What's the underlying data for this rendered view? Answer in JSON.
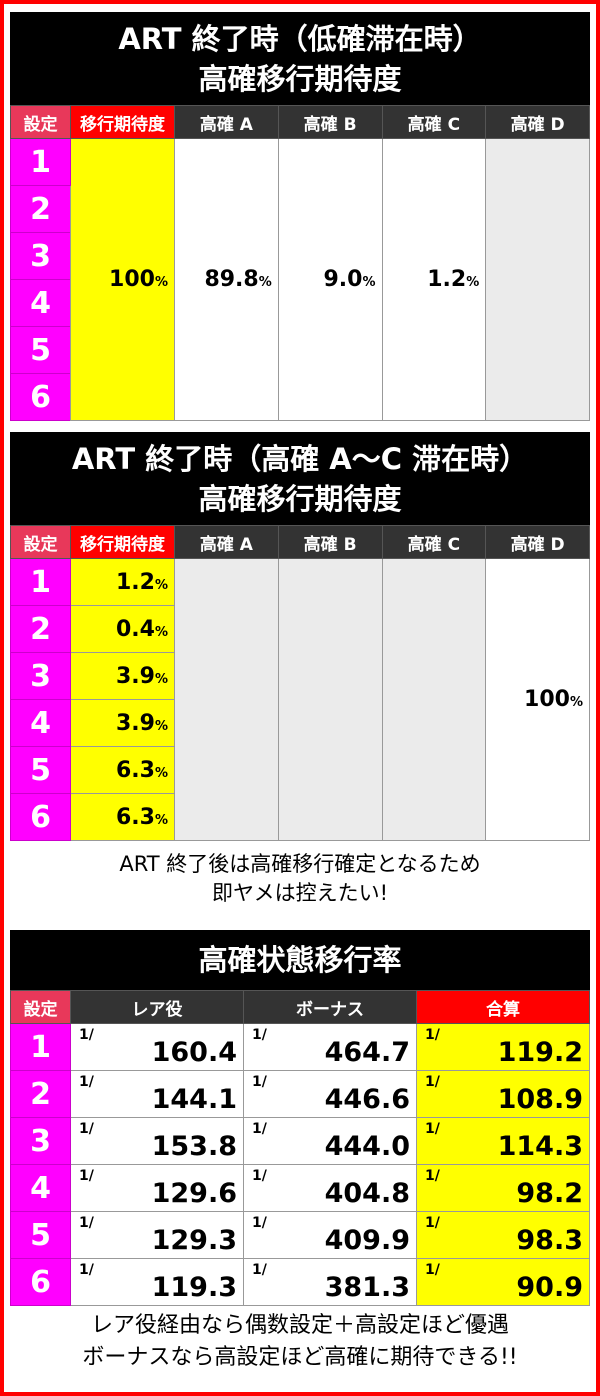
{
  "section1": {
    "title_line1": "ART 終了時（低確滞在時）",
    "title_line2": "高確移行期待度",
    "headers": [
      "設定",
      "移行期待度",
      "高確 A",
      "高確 B",
      "高確 C",
      "高確 D"
    ],
    "settings": [
      "1",
      "2",
      "3",
      "4",
      "5",
      "6"
    ],
    "expectation": "100",
    "a": "89.8",
    "b": "9.0",
    "c": "1.2",
    "pct": "%"
  },
  "section2": {
    "title_line1": "ART 終了時（高確 A〜C 滞在時）",
    "title_line2": "高確移行期待度",
    "headers": [
      "設定",
      "移行期待度",
      "高確 A",
      "高確 B",
      "高確 C",
      "高確 D"
    ],
    "settings": [
      "1",
      "2",
      "3",
      "4",
      "5",
      "6"
    ],
    "expectation": [
      "1.2",
      "0.4",
      "3.9",
      "3.9",
      "6.3",
      "6.3"
    ],
    "d": "100",
    "pct": "%"
  },
  "note1": {
    "line1": "ART 終了後は高確移行確定となるため",
    "line2": "即ヤメは控えたい!"
  },
  "section3": {
    "title": "高確状態移行率",
    "headers": [
      "設定",
      "レア役",
      "ボーナス",
      "合算"
    ],
    "prefix": "1/",
    "rows": [
      {
        "setting": "1",
        "rare": "160.4",
        "bonus": "464.7",
        "total": "119.2"
      },
      {
        "setting": "2",
        "rare": "144.1",
        "bonus": "446.6",
        "total": "108.9"
      },
      {
        "setting": "3",
        "rare": "153.8",
        "bonus": "444.0",
        "total": "114.3"
      },
      {
        "setting": "4",
        "rare": "129.6",
        "bonus": "404.8",
        "total": "98.2"
      },
      {
        "setting": "5",
        "rare": "129.3",
        "bonus": "409.9",
        "total": "98.3"
      },
      {
        "setting": "6",
        "rare": "119.3",
        "bonus": "381.3",
        "total": "90.9"
      }
    ]
  },
  "note2": {
    "line1": "レア役経由なら偶数設定＋高設定ほど優遇",
    "line2": "ボーナスなら高設定ほど高確に期待できる!!"
  },
  "colors": {
    "border": "#ff0000",
    "setting": "#ff00ff",
    "highlight": "#ffff00",
    "header": "#333333"
  }
}
